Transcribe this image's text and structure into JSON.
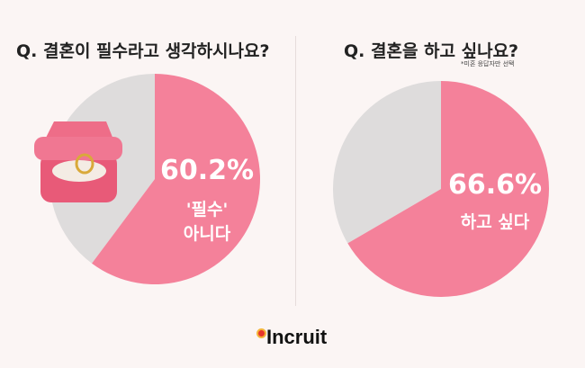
{
  "chart_data": [
    {
      "type": "pie",
      "title": "Q. 결혼이 필수라고 생각하시나요?",
      "slices": [
        {
          "label": "'필수' 아니다",
          "value": 60.2,
          "value_label": "60.2%"
        },
        {
          "label": "",
          "value": 39.8
        }
      ],
      "colors": [
        "#f4819a",
        "#dedcdc"
      ]
    },
    {
      "type": "pie",
      "title": "Q. 결혼을 하고 싶나요?",
      "note": "*미혼 응답자만 선택",
      "slices": [
        {
          "label": "하고 싶다",
          "value": 66.6,
          "value_label": "66.6%"
        },
        {
          "label": "",
          "value": 33.4
        }
      ],
      "colors": [
        "#f4819a",
        "#dedcdc"
      ]
    }
  ],
  "brand": "Incruit"
}
